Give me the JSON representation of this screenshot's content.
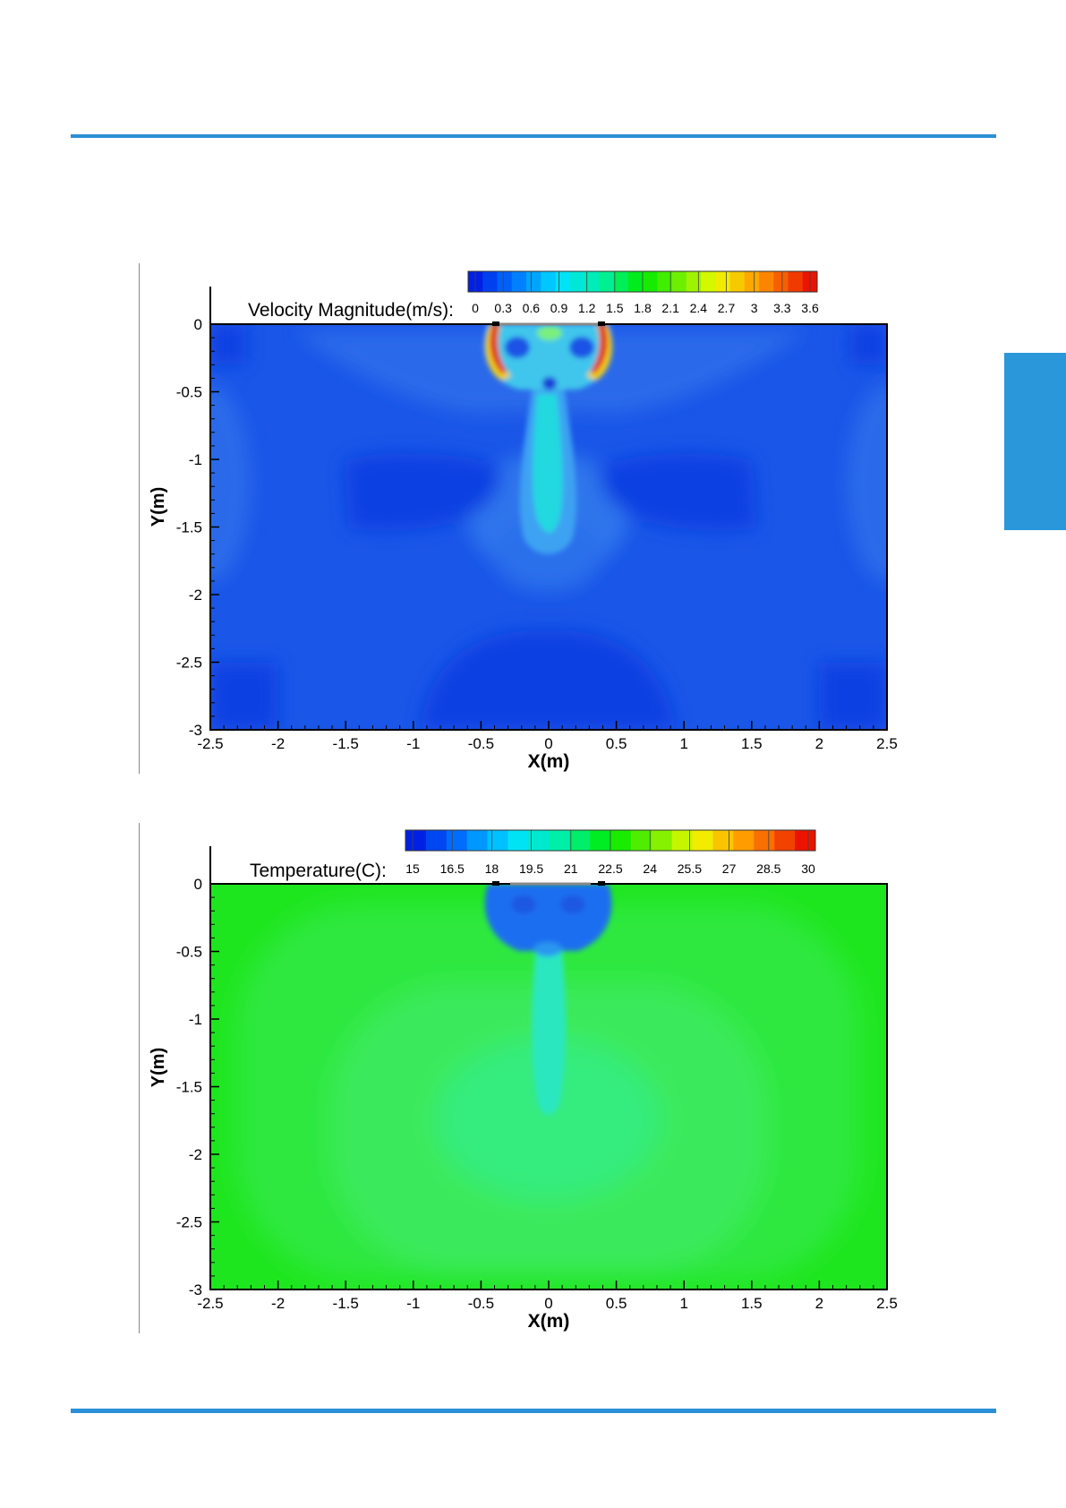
{
  "chart_data": [
    {
      "type": "heatmap",
      "title": "Velocity Magnitude(m/s):",
      "xlabel": "X(m)",
      "ylabel": "Y(m)",
      "xlim": [
        -2.5,
        2.5
      ],
      "ylim": [
        -3,
        0
      ],
      "x_ticks": [
        "-2.5",
        "-2",
        "-1.5",
        "-1",
        "-0.5",
        "0",
        "0.5",
        "1",
        "1.5",
        "2",
        "2.5"
      ],
      "y_ticks": [
        "0",
        "-0.5",
        "-1",
        "-1.5",
        "-2",
        "-2.5",
        "-3"
      ],
      "colorbar": {
        "min": 0,
        "max": 3.6,
        "labels": [
          "0",
          "0.3",
          "0.6",
          "0.9",
          "1.2",
          "1.5",
          "1.8",
          "2.1",
          "2.4",
          "2.7",
          "3",
          "3.3",
          "3.6"
        ]
      },
      "field_summary": {
        "background": 0.3,
        "jet_core_max": 1.2,
        "inlet_edge_max": 3.6,
        "low_velocity_pockets": 0.1
      }
    },
    {
      "type": "heatmap",
      "title": "Temperature(C):",
      "xlabel": "X(m)",
      "ylabel": "Y(m)",
      "xlim": [
        -2.5,
        2.5
      ],
      "ylim": [
        -3,
        0
      ],
      "x_ticks": [
        "-2.5",
        "-2",
        "-1.5",
        "-1",
        "-0.5",
        "0",
        "0.5",
        "1",
        "1.5",
        "2",
        "2.5"
      ],
      "y_ticks": [
        "0",
        "-0.5",
        "-1",
        "-1.5",
        "-2",
        "-2.5",
        "-3"
      ],
      "colorbar": {
        "min": 15,
        "max": 30,
        "labels": [
          "15",
          "16.5",
          "18",
          "19.5",
          "21",
          "22.5",
          "24",
          "25.5",
          "27",
          "28.5",
          "30"
        ]
      },
      "field_summary": {
        "room_background": 22.5,
        "central_region": 21.5,
        "jet_core": 20,
        "inlet_region": 17
      }
    }
  ]
}
